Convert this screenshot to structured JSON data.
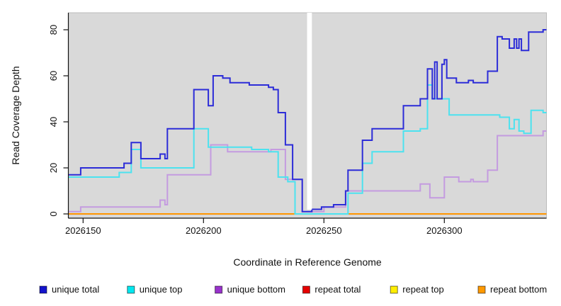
{
  "chart_data": {
    "type": "line",
    "subtype": "step-after-coverage-plot",
    "title": "",
    "xlabel": "Coordinate in Reference Genome",
    "ylabel": "Read Coverage Depth",
    "x_ticks": [
      2026150,
      2026200,
      2026250,
      2026300
    ],
    "y_ticks": [
      0,
      20,
      40,
      60,
      80
    ],
    "x_range": [
      2026144,
      2026342
    ],
    "ylim": [
      0,
      80
    ],
    "grid": false,
    "plot_bg": "#d9d9d9",
    "gap_region": {
      "from": 2026243,
      "to": 2026245,
      "note": "white no-data band"
    },
    "series": [
      {
        "name": "repeat total",
        "color": "#e60000",
        "points": [
          [
            2026144,
            0
          ]
        ]
      },
      {
        "name": "repeat top",
        "color": "#ffee00",
        "points": [
          [
            2026144,
            0
          ]
        ]
      },
      {
        "name": "repeat bottom",
        "color": "#ff9500",
        "points": [
          [
            2026144,
            0
          ]
        ]
      },
      {
        "name": "unique bottom",
        "color": "#c49be0",
        "points": [
          [
            2026144,
            1
          ],
          [
            2026149,
            3
          ],
          [
            2026182,
            6
          ],
          [
            2026184,
            4
          ],
          [
            2026185,
            17
          ],
          [
            2026203,
            30
          ],
          [
            2026210,
            27
          ],
          [
            2026228,
            28
          ],
          [
            2026234,
            15
          ],
          [
            2026241,
            1
          ],
          [
            2026250,
            3
          ],
          [
            2026259,
            10
          ],
          [
            2026290,
            13
          ],
          [
            2026294,
            7
          ],
          [
            2026300,
            16
          ],
          [
            2026306,
            14
          ],
          [
            2026311,
            15
          ],
          [
            2026312,
            14
          ],
          [
            2026318,
            19
          ],
          [
            2026322,
            34
          ],
          [
            2026341,
            36
          ]
        ]
      },
      {
        "name": "unique top",
        "color": "#4ce2ef",
        "points": [
          [
            2026144,
            16
          ],
          [
            2026165,
            18
          ],
          [
            2026170,
            28
          ],
          [
            2026174,
            20
          ],
          [
            2026196,
            37
          ],
          [
            2026202,
            29
          ],
          [
            2026220,
            28
          ],
          [
            2026227,
            27
          ],
          [
            2026231,
            16
          ],
          [
            2026235,
            14
          ],
          [
            2026238,
            0
          ],
          [
            2026260,
            9
          ],
          [
            2026266,
            22
          ],
          [
            2026270,
            27
          ],
          [
            2026283,
            36
          ],
          [
            2026290,
            37
          ],
          [
            2026293,
            56
          ],
          [
            2026295,
            50
          ],
          [
            2026302,
            43
          ],
          [
            2026323,
            42
          ],
          [
            2026327,
            37
          ],
          [
            2026329,
            41
          ],
          [
            2026331,
            36
          ],
          [
            2026333,
            35
          ],
          [
            2026336,
            45
          ],
          [
            2026341,
            44
          ]
        ]
      },
      {
        "name": "unique total",
        "color": "#2c2cd8",
        "points": [
          [
            2026144,
            17
          ],
          [
            2026149,
            20
          ],
          [
            2026167,
            22
          ],
          [
            2026170,
            31
          ],
          [
            2026174,
            24
          ],
          [
            2026182,
            26
          ],
          [
            2026184,
            24
          ],
          [
            2026185,
            37
          ],
          [
            2026196,
            54
          ],
          [
            2026202,
            47
          ],
          [
            2026204,
            60
          ],
          [
            2026208,
            59
          ],
          [
            2026211,
            57
          ],
          [
            2026219,
            56
          ],
          [
            2026227,
            55
          ],
          [
            2026229,
            54
          ],
          [
            2026231,
            44
          ],
          [
            2026234,
            30
          ],
          [
            2026237,
            15
          ],
          [
            2026241,
            1
          ],
          [
            2026245,
            2
          ],
          [
            2026249,
            3
          ],
          [
            2026254,
            4
          ],
          [
            2026259,
            10
          ],
          [
            2026260,
            19
          ],
          [
            2026266,
            32
          ],
          [
            2026270,
            37
          ],
          [
            2026283,
            47
          ],
          [
            2026290,
            50
          ],
          [
            2026293,
            63
          ],
          [
            2026295,
            50
          ],
          [
            2026296,
            66
          ],
          [
            2026297,
            50
          ],
          [
            2026299,
            65
          ],
          [
            2026300,
            67
          ],
          [
            2026301,
            59
          ],
          [
            2026305,
            57
          ],
          [
            2026310,
            58
          ],
          [
            2026312,
            57
          ],
          [
            2026318,
            62
          ],
          [
            2026322,
            77
          ],
          [
            2026324,
            76
          ],
          [
            2026327,
            72
          ],
          [
            2026329,
            76
          ],
          [
            2026330,
            72
          ],
          [
            2026331,
            76
          ],
          [
            2026332,
            71
          ],
          [
            2026335,
            79
          ],
          [
            2026341,
            80
          ]
        ]
      }
    ],
    "legend_position": "bottom"
  },
  "legend": {
    "items": [
      {
        "label": "unique total",
        "color": "#1414cc"
      },
      {
        "label": "unique top",
        "color": "#00e8f0"
      },
      {
        "label": "unique bottom",
        "color": "#9932cc"
      },
      {
        "label": "repeat total",
        "color": "#e60000"
      },
      {
        "label": "repeat top",
        "color": "#ffee00"
      },
      {
        "label": "repeat bottom",
        "color": "#ff9900"
      }
    ]
  }
}
